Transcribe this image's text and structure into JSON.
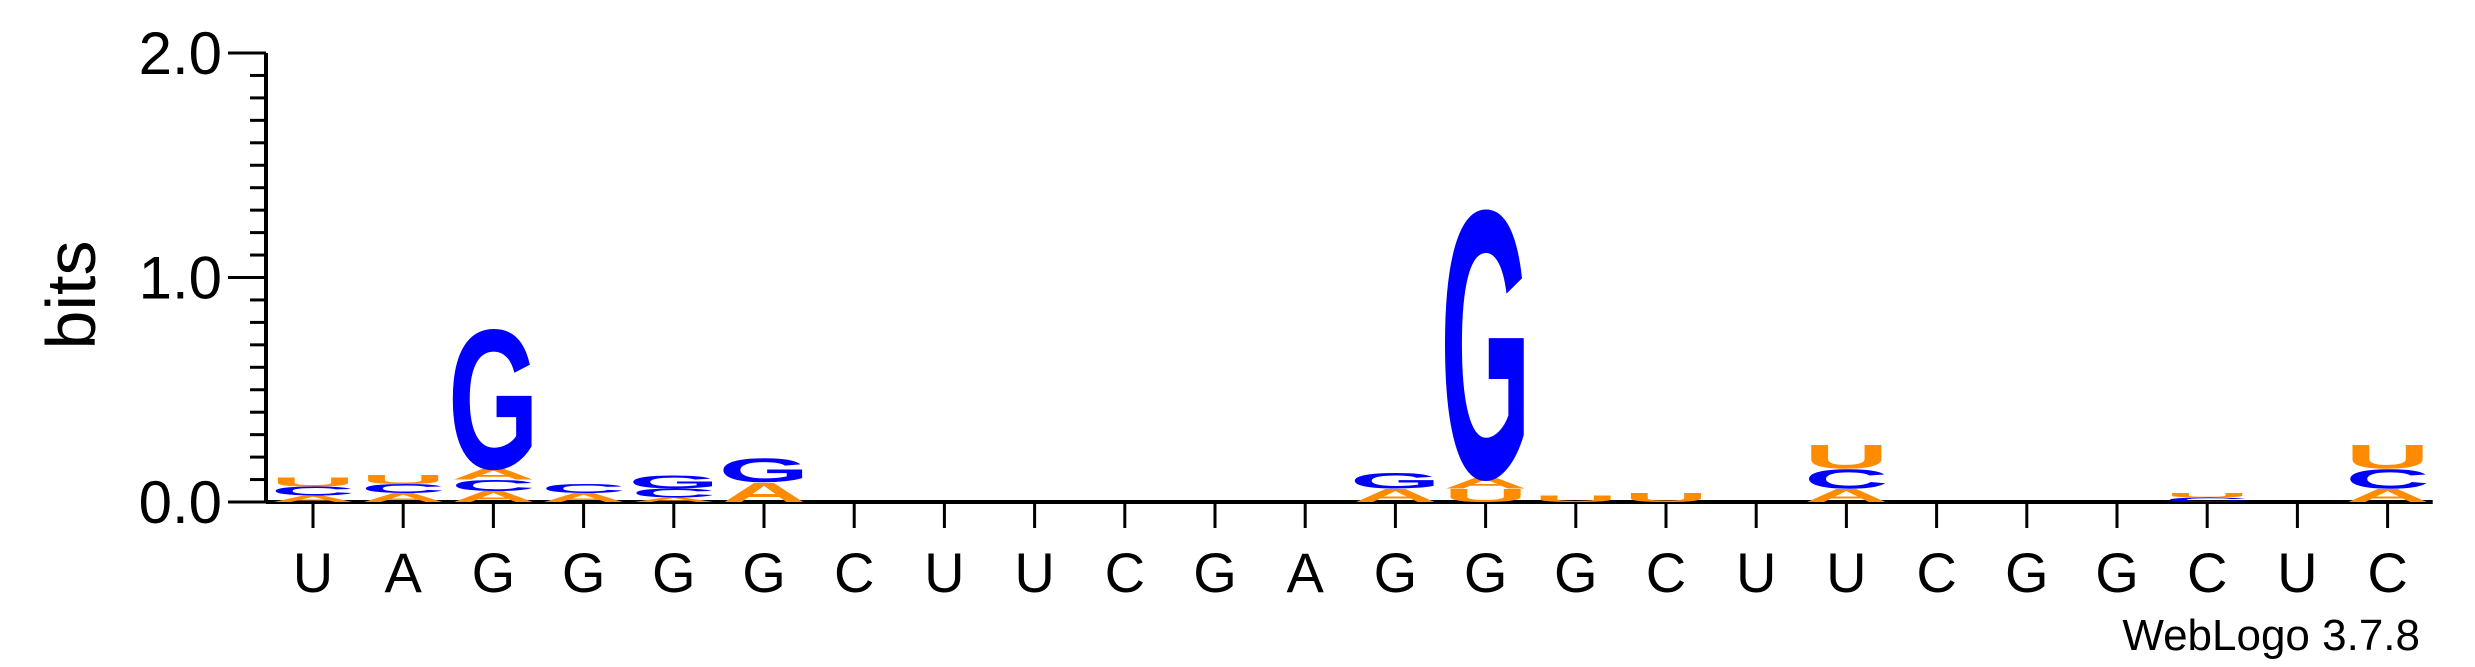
{
  "chart_data": {
    "type": "sequence-logo",
    "ylabel": "bits",
    "ylim": [
      0,
      2.0
    ],
    "yticks": [
      "0.0",
      "1.0",
      "2.0"
    ],
    "sequence": [
      "U",
      "A",
      "G",
      "G",
      "G",
      "G",
      "C",
      "U",
      "U",
      "C",
      "G",
      "A",
      "G",
      "G",
      "G",
      "C",
      "U",
      "U",
      "C",
      "G",
      "G",
      "C",
      "U",
      "C"
    ],
    "colors": {
      "G": "#0000ff",
      "U": "#ff8c00",
      "A": "#ff8c00",
      "C": "#0000ff"
    },
    "stacks": [
      [
        {
          "l": "A",
          "v": 0.03
        },
        {
          "l": "C",
          "v": 0.04
        },
        {
          "l": "U",
          "v": 0.04
        }
      ],
      [
        {
          "l": "A",
          "v": 0.04
        },
        {
          "l": "C",
          "v": 0.04
        },
        {
          "l": "U",
          "v": 0.04
        }
      ],
      [
        {
          "l": "A",
          "v": 0.05
        },
        {
          "l": "C",
          "v": 0.05
        },
        {
          "l": "A",
          "v": 0.05
        },
        {
          "l": "G",
          "v": 0.64
        }
      ],
      [
        {
          "l": "A",
          "v": 0.04
        },
        {
          "l": "C",
          "v": 0.04
        }
      ],
      [
        {
          "l": "A",
          "v": 0.02
        },
        {
          "l": "C",
          "v": 0.04
        },
        {
          "l": "G",
          "v": 0.06
        }
      ],
      [
        {
          "l": "A",
          "v": 0.09
        },
        {
          "l": "G",
          "v": 0.11
        }
      ],
      [],
      [],
      [],
      [],
      [],
      [],
      [
        {
          "l": "A",
          "v": 0.06
        },
        {
          "l": "G",
          "v": 0.07
        }
      ],
      [
        {
          "l": "U",
          "v": 0.06
        },
        {
          "l": "A",
          "v": 0.05
        },
        {
          "l": "G",
          "v": 1.23
        }
      ],
      [
        {
          "l": "U",
          "v": 0.03
        }
      ],
      [
        {
          "l": "U",
          "v": 0.04
        }
      ],
      [],
      [
        {
          "l": "A",
          "v": 0.06
        },
        {
          "l": "C",
          "v": 0.09
        },
        {
          "l": "U",
          "v": 0.11
        }
      ],
      [],
      [],
      [],
      [
        {
          "l": "C",
          "v": 0.02
        },
        {
          "l": "U",
          "v": 0.02
        }
      ],
      [],
      [
        {
          "l": "A",
          "v": 0.06
        },
        {
          "l": "C",
          "v": 0.09
        },
        {
          "l": "U",
          "v": 0.11
        }
      ]
    ]
  },
  "credit": "WebLogo 3.7.8"
}
